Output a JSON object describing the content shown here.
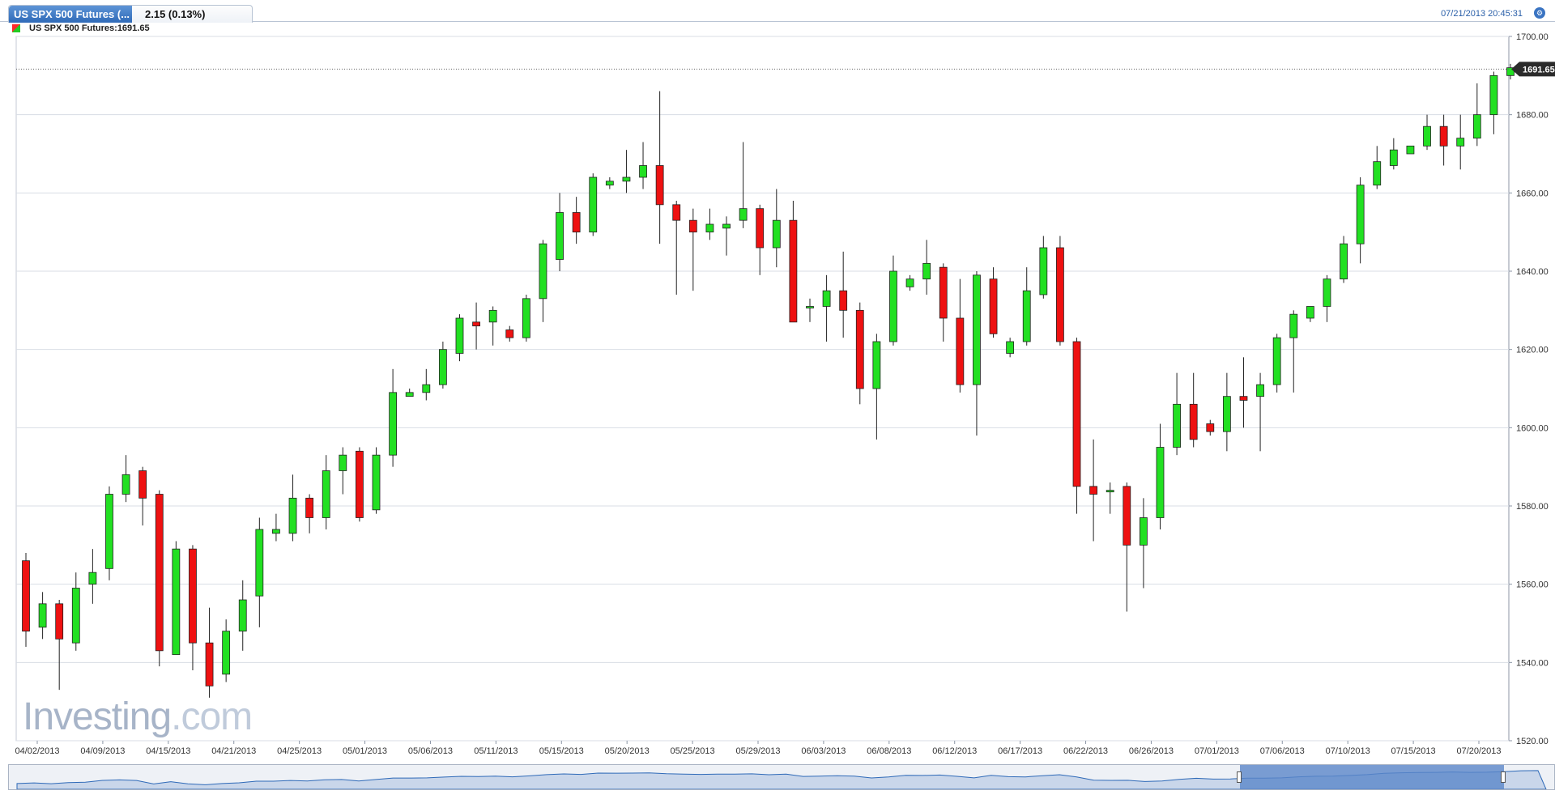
{
  "tab": {
    "title": "US SPX 500 Futures (...",
    "change": "2.15 (0.13%)"
  },
  "datetime": "07/21/2013 20:45:31",
  "legend": "US SPX 500 Futures:1691.65",
  "watermark": {
    "main": "Investing",
    "suffix": ".com"
  },
  "colors": {
    "up": "#22e022",
    "down": "#ee1111",
    "grid": "#d8dde5",
    "accent": "#2f6ab8"
  },
  "icons": {
    "settings": "gear-icon"
  },
  "chart_data": {
    "type": "candlestick",
    "title": "US SPX 500 Futures",
    "last_price": 1691.65,
    "last_price_label": "1691.65",
    "ylim": [
      1520,
      1700
    ],
    "yticks": [
      1520,
      1540,
      1560,
      1580,
      1600,
      1620,
      1640,
      1660,
      1680,
      1700
    ],
    "ytick_labels": [
      "1520.00",
      "1540.00",
      "1560.00",
      "1580.00",
      "1600.00",
      "1620.00",
      "1640.00",
      "1660.00",
      "1680.00",
      "1700.00"
    ],
    "xtick_labels": [
      "04/02/2013",
      "04/09/2013",
      "04/15/2013",
      "04/21/2013",
      "04/25/2013",
      "05/01/2013",
      "05/06/2013",
      "05/11/2013",
      "05/15/2013",
      "05/20/2013",
      "05/25/2013",
      "05/29/2013",
      "06/03/2013",
      "06/08/2013",
      "06/12/2013",
      "06/17/2013",
      "06/22/2013",
      "06/26/2013",
      "07/01/2013",
      "07/06/2013",
      "07/10/2013",
      "07/15/2013",
      "07/20/2013"
    ],
    "grid": true,
    "candles": [
      {
        "o": 1566,
        "h": 1568,
        "l": 1544,
        "c": 1548
      },
      {
        "o": 1549,
        "h": 1558,
        "l": 1546,
        "c": 1555
      },
      {
        "o": 1555,
        "h": 1556,
        "l": 1533,
        "c": 1546
      },
      {
        "o": 1545,
        "h": 1563,
        "l": 1543,
        "c": 1559
      },
      {
        "o": 1560,
        "h": 1569,
        "l": 1555,
        "c": 1563
      },
      {
        "o": 1564,
        "h": 1585,
        "l": 1561,
        "c": 1583
      },
      {
        "o": 1583,
        "h": 1593,
        "l": 1581,
        "c": 1588
      },
      {
        "o": 1589,
        "h": 1590,
        "l": 1575,
        "c": 1582
      },
      {
        "o": 1583,
        "h": 1584,
        "l": 1539,
        "c": 1543
      },
      {
        "o": 1542,
        "h": 1571,
        "l": 1542,
        "c": 1569
      },
      {
        "o": 1569,
        "h": 1570,
        "l": 1538,
        "c": 1545
      },
      {
        "o": 1545,
        "h": 1554,
        "l": 1531,
        "c": 1534
      },
      {
        "o": 1537,
        "h": 1551,
        "l": 1535,
        "c": 1548
      },
      {
        "o": 1548,
        "h": 1561,
        "l": 1543,
        "c": 1556
      },
      {
        "o": 1557,
        "h": 1577,
        "l": 1549,
        "c": 1574
      },
      {
        "o": 1573,
        "h": 1578,
        "l": 1571,
        "c": 1574
      },
      {
        "o": 1573,
        "h": 1588,
        "l": 1571,
        "c": 1582
      },
      {
        "o": 1582,
        "h": 1583,
        "l": 1573,
        "c": 1577
      },
      {
        "o": 1577,
        "h": 1593,
        "l": 1574,
        "c": 1589
      },
      {
        "o": 1589,
        "h": 1595,
        "l": 1583,
        "c": 1593
      },
      {
        "o": 1594,
        "h": 1595,
        "l": 1576,
        "c": 1577
      },
      {
        "o": 1579,
        "h": 1595,
        "l": 1578,
        "c": 1593
      },
      {
        "o": 1593,
        "h": 1615,
        "l": 1590,
        "c": 1609
      },
      {
        "o": 1608,
        "h": 1610,
        "l": 1608,
        "c": 1609
      },
      {
        "o": 1609,
        "h": 1615,
        "l": 1607,
        "c": 1611
      },
      {
        "o": 1611,
        "h": 1622,
        "l": 1610,
        "c": 1620
      },
      {
        "o": 1619,
        "h": 1629,
        "l": 1617,
        "c": 1628
      },
      {
        "o": 1627,
        "h": 1632,
        "l": 1620,
        "c": 1626
      },
      {
        "o": 1627,
        "h": 1631,
        "l": 1621,
        "c": 1630
      },
      {
        "o": 1625,
        "h": 1626,
        "l": 1622,
        "c": 1623
      },
      {
        "o": 1623,
        "h": 1634,
        "l": 1622,
        "c": 1633
      },
      {
        "o": 1633,
        "h": 1648,
        "l": 1627,
        "c": 1647
      },
      {
        "o": 1643,
        "h": 1660,
        "l": 1640,
        "c": 1655
      },
      {
        "o": 1655,
        "h": 1659,
        "l": 1647,
        "c": 1650
      },
      {
        "o": 1650,
        "h": 1665,
        "l": 1649,
        "c": 1664
      },
      {
        "o": 1662,
        "h": 1664,
        "l": 1661,
        "c": 1663
      },
      {
        "o": 1663,
        "h": 1671,
        "l": 1660,
        "c": 1664
      },
      {
        "o": 1664,
        "h": 1673,
        "l": 1661,
        "c": 1667
      },
      {
        "o": 1667,
        "h": 1686,
        "l": 1647,
        "c": 1657
      },
      {
        "o": 1657,
        "h": 1658,
        "l": 1634,
        "c": 1653
      },
      {
        "o": 1653,
        "h": 1656,
        "l": 1635,
        "c": 1650
      },
      {
        "o": 1650,
        "h": 1656,
        "l": 1648,
        "c": 1652
      },
      {
        "o": 1651,
        "h": 1654,
        "l": 1644,
        "c": 1652
      },
      {
        "o": 1653,
        "h": 1673,
        "l": 1651,
        "c": 1656
      },
      {
        "o": 1656,
        "h": 1657,
        "l": 1639,
        "c": 1646
      },
      {
        "o": 1646,
        "h": 1661,
        "l": 1641,
        "c": 1653
      },
      {
        "o": 1653,
        "h": 1658,
        "l": 1627,
        "c": 1627
      },
      {
        "o": 1631,
        "h": 1633,
        "l": 1627,
        "c": 1631
      },
      {
        "o": 1631,
        "h": 1639,
        "l": 1622,
        "c": 1635
      },
      {
        "o": 1635,
        "h": 1645,
        "l": 1623,
        "c": 1630
      },
      {
        "o": 1630,
        "h": 1632,
        "l": 1606,
        "c": 1610
      },
      {
        "o": 1610,
        "h": 1624,
        "l": 1597,
        "c": 1622
      },
      {
        "o": 1622,
        "h": 1644,
        "l": 1621,
        "c": 1640
      },
      {
        "o": 1636,
        "h": 1639,
        "l": 1635,
        "c": 1638
      },
      {
        "o": 1638,
        "h": 1648,
        "l": 1634,
        "c": 1642
      },
      {
        "o": 1641,
        "h": 1642,
        "l": 1622,
        "c": 1628
      },
      {
        "o": 1628,
        "h": 1638,
        "l": 1609,
        "c": 1611
      },
      {
        "o": 1611,
        "h": 1640,
        "l": 1598,
        "c": 1639
      },
      {
        "o": 1638,
        "h": 1641,
        "l": 1623,
        "c": 1624
      },
      {
        "o": 1619,
        "h": 1623,
        "l": 1618,
        "c": 1622
      },
      {
        "o": 1622,
        "h": 1641,
        "l": 1621,
        "c": 1635
      },
      {
        "o": 1634,
        "h": 1649,
        "l": 1633,
        "c": 1646
      },
      {
        "o": 1646,
        "h": 1649,
        "l": 1621,
        "c": 1622
      },
      {
        "o": 1622,
        "h": 1623,
        "l": 1578,
        "c": 1585
      },
      {
        "o": 1585,
        "h": 1597,
        "l": 1571,
        "c": 1583
      },
      {
        "o": 1584,
        "h": 1586,
        "l": 1578,
        "c": 1584
      },
      {
        "o": 1585,
        "h": 1586,
        "l": 1553,
        "c": 1570
      },
      {
        "o": 1570,
        "h": 1582,
        "l": 1559,
        "c": 1577
      },
      {
        "o": 1577,
        "h": 1601,
        "l": 1574,
        "c": 1595
      },
      {
        "o": 1595,
        "h": 1614,
        "l": 1593,
        "c": 1606
      },
      {
        "o": 1606,
        "h": 1614,
        "l": 1595,
        "c": 1597
      },
      {
        "o": 1601,
        "h": 1602,
        "l": 1598,
        "c": 1599
      },
      {
        "o": 1599,
        "h": 1614,
        "l": 1594,
        "c": 1608
      },
      {
        "o": 1608,
        "h": 1618,
        "l": 1600,
        "c": 1607
      },
      {
        "o": 1608,
        "h": 1614,
        "l": 1594,
        "c": 1611
      },
      {
        "o": 1611,
        "h": 1624,
        "l": 1609,
        "c": 1623
      },
      {
        "o": 1623,
        "h": 1630,
        "l": 1609,
        "c": 1629
      },
      {
        "o": 1628,
        "h": 1631,
        "l": 1627,
        "c": 1631
      },
      {
        "o": 1631,
        "h": 1639,
        "l": 1627,
        "c": 1638
      },
      {
        "o": 1638,
        "h": 1649,
        "l": 1637,
        "c": 1647
      },
      {
        "o": 1647,
        "h": 1664,
        "l": 1642,
        "c": 1662
      },
      {
        "o": 1662,
        "h": 1672,
        "l": 1661,
        "c": 1668
      },
      {
        "o": 1667,
        "h": 1674,
        "l": 1666,
        "c": 1671
      },
      {
        "o": 1670,
        "h": 1672,
        "l": 1670,
        "c": 1672
      },
      {
        "o": 1672,
        "h": 1680,
        "l": 1671,
        "c": 1677
      },
      {
        "o": 1677,
        "h": 1680,
        "l": 1667,
        "c": 1672
      },
      {
        "o": 1672,
        "h": 1680,
        "l": 1666,
        "c": 1674
      },
      {
        "o": 1674,
        "h": 1688,
        "l": 1672,
        "c": 1680
      },
      {
        "o": 1680,
        "h": 1691,
        "l": 1675,
        "c": 1690
      },
      {
        "o": 1690,
        "h": 1693,
        "l": 1689,
        "c": 1692
      }
    ]
  }
}
